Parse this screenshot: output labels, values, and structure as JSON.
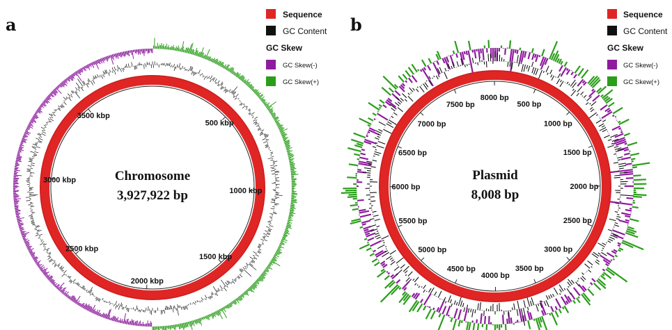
{
  "colors": {
    "sequence": "#e02525",
    "sequence_light": "#f05a5a",
    "gc_content": "#111111",
    "gc_skew_minus": "#8e1c9e",
    "gc_skew_plus": "#2a9e1a"
  },
  "panels": [
    {
      "letter": "a",
      "title": "Chromosome",
      "subtitle": "3,927,922 bp",
      "genome_length": 3927922,
      "ticks": [
        {
          "label": "500 kbp",
          "value": 500000
        },
        {
          "label": "1000 kbp",
          "value": 1000000
        },
        {
          "label": "1500 kbp",
          "value": 1500000
        },
        {
          "label": "2000 kbp",
          "value": 2000000
        },
        {
          "label": "2500 kbp",
          "value": 2500000
        },
        {
          "label": "3000 kbp",
          "value": 3000000
        },
        {
          "label": "3500 kbp",
          "value": 3500000
        }
      ],
      "legend": {
        "sequence": "Sequence",
        "gc_content": "GC Content",
        "gc_skew_title": "GC Skew",
        "gc_skew_minus": "GC Skew(-)",
        "gc_skew_plus": "GC Skew(+)"
      }
    },
    {
      "letter": "b",
      "title": "Plasmid",
      "subtitle": "8,008 bp",
      "genome_length": 8008,
      "ticks": [
        {
          "label": "500 bp",
          "value": 500
        },
        {
          "label": "1000 bp",
          "value": 1000
        },
        {
          "label": "1500 bp",
          "value": 1500
        },
        {
          "label": "2000 bp",
          "value": 2000
        },
        {
          "label": "2500 bp",
          "value": 2500
        },
        {
          "label": "3000 bp",
          "value": 3000
        },
        {
          "label": "3500 bp",
          "value": 3500
        },
        {
          "label": "4000 bp",
          "value": 4000
        },
        {
          "label": "4500 bp",
          "value": 4500
        },
        {
          "label": "5000 bp",
          "value": 5000
        },
        {
          "label": "5500 bp",
          "value": 5500
        },
        {
          "label": "6000 bp",
          "value": 6000
        },
        {
          "label": "6500 bp",
          "value": 6500
        },
        {
          "label": "7000 bp",
          "value": 7000
        },
        {
          "label": "7500 bp",
          "value": 7500
        },
        {
          "label": "8000 bp",
          "value": 8000
        }
      ],
      "legend": {
        "sequence": "Sequence",
        "gc_content": "GC Content",
        "gc_skew_title": "GC Skew",
        "gc_skew_minus": "GC Skew(-)",
        "gc_skew_plus": "GC Skew(+)"
      }
    }
  ]
}
